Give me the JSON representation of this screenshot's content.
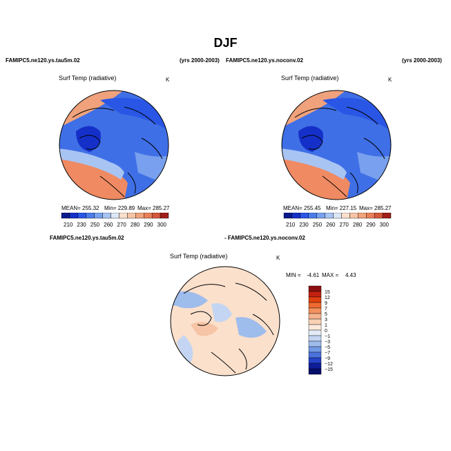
{
  "title": "DJF",
  "header": {
    "case1": "FAMIPC5.ne120.ys.tau5m.02",
    "years1": "(yrs 2000-2003)",
    "case2": "FAMIPC5.ne120.ys.noconv.02",
    "years2": "(yrs 2000-2003)",
    "diff_left": "FAMIPC5.ne120.ys.tau5m.02",
    "diff_right": "- FAMIPC5.ne120.ys.noconv.02"
  },
  "chart_data": [
    {
      "type": "heatmap",
      "projection": "polar stereographic (Arctic)",
      "title": "Surf Temp (radiative)",
      "units": "K",
      "stats": {
        "mean": "MEAN= 255.32",
        "min": "Min= 229.89",
        "max": "Max= 285.27"
      },
      "colorbar_ticks": [
        "210",
        "230",
        "250",
        "260",
        "270",
        "280",
        "290",
        "300"
      ],
      "colorbar_colors": [
        "#0a1a8c",
        "#1530c8",
        "#2a56e6",
        "#4c7be9",
        "#78a0ee",
        "#a8c4f3",
        "#dbe6f6",
        "#fbe0cc",
        "#f6c4a6",
        "#f0a27c",
        "#e8805a",
        "#d4583b",
        "#a01f1a"
      ]
    },
    {
      "type": "heatmap",
      "projection": "polar stereographic (Arctic)",
      "title": "Surf Temp (radiative)",
      "units": "K",
      "stats": {
        "mean": "MEAN= 255.45",
        "min": "Min= 227.15",
        "max": "Max= 285.27"
      },
      "colorbar_ticks": [
        "210",
        "230",
        "250",
        "260",
        "270",
        "280",
        "290",
        "300"
      ],
      "colorbar_colors": [
        "#0a1a8c",
        "#1530c8",
        "#2a56e6",
        "#4c7be9",
        "#78a0ee",
        "#a8c4f3",
        "#dbe6f6",
        "#fbe0cc",
        "#f6c4a6",
        "#f0a27c",
        "#e8805a",
        "#d4583b",
        "#a01f1a"
      ]
    },
    {
      "type": "heatmap",
      "projection": "polar stereographic (Arctic)",
      "title": "Surf Temp (radiative)",
      "units": "K",
      "stats": {
        "min": "MIN =",
        "min_val": "-4.61",
        "max": "MAX =",
        "max_val": "4.43"
      },
      "colorbar_ticks": [
        "15",
        "12",
        "9",
        "7",
        "5",
        "3",
        "1",
        "0",
        "−1",
        "−3",
        "−5",
        "−7",
        "−9",
        "−12",
        "−15"
      ],
      "colorbar_colors": [
        "#8b0f0f",
        "#c0220f",
        "#e0400f",
        "#ef6a30",
        "#f2915e",
        "#f5b48e",
        "#f8d2b6",
        "#fbeadb",
        "#e2ebf6",
        "#c3d5f2",
        "#9ebcec",
        "#7199e6",
        "#4a72dc",
        "#2642c8",
        "#0e1e9a",
        "#050f6a"
      ]
    }
  ]
}
